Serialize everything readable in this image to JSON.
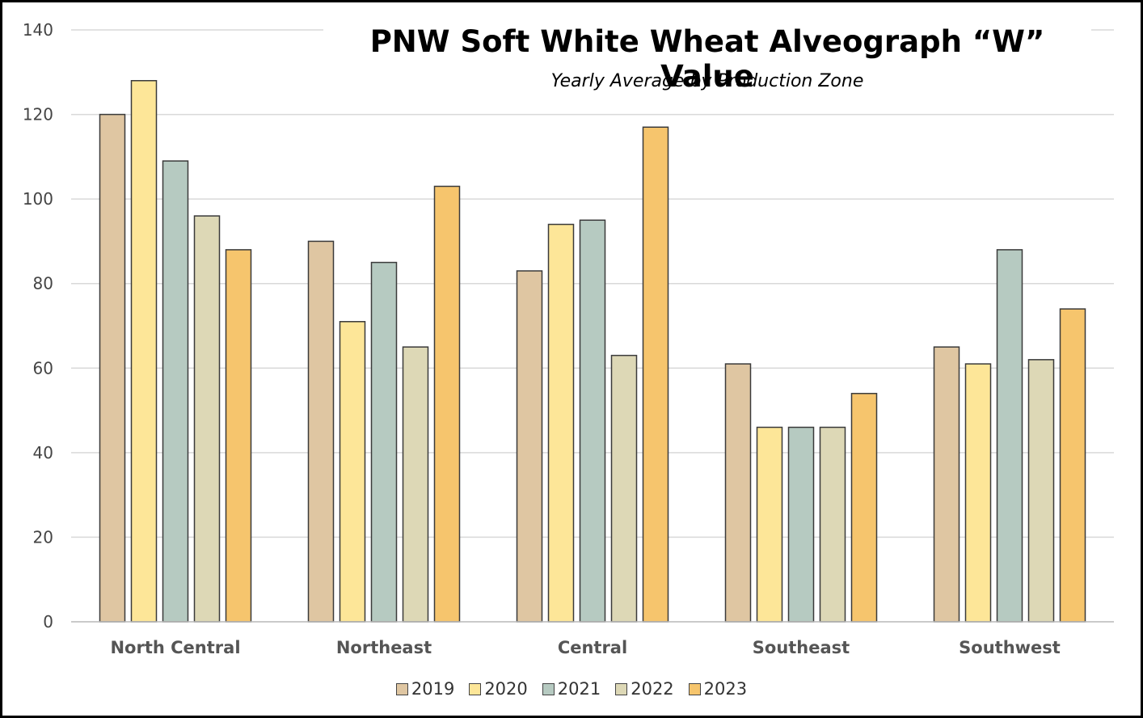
{
  "chart_data": {
    "type": "bar",
    "title": "PNW Soft White Wheat Alveograph “W” Value",
    "subtitle": "Yearly Average by Production Zone",
    "categories": [
      "North Central",
      "Northeast",
      "Central",
      "Southeast",
      "Southwest"
    ],
    "series": [
      {
        "name": "2019",
        "color": "#dfc6a2",
        "values": [
          120,
          90,
          83,
          61,
          65
        ]
      },
      {
        "name": "2020",
        "color": "#fde698",
        "values": [
          128,
          71,
          94,
          46,
          61
        ]
      },
      {
        "name": "2021",
        "color": "#b6cac1",
        "values": [
          109,
          85,
          95,
          46,
          88
        ]
      },
      {
        "name": "2022",
        "color": "#ddd8b6",
        "values": [
          96,
          65,
          63,
          46,
          62
        ]
      },
      {
        "name": "2023",
        "color": "#f6c56d",
        "values": [
          88,
          103,
          117,
          54,
          74
        ]
      }
    ],
    "ylim": [
      0,
      140
    ],
    "yticks": [
      0,
      20,
      40,
      60,
      80,
      100,
      120,
      140
    ],
    "grid": true,
    "legend_position": "bottom"
  }
}
